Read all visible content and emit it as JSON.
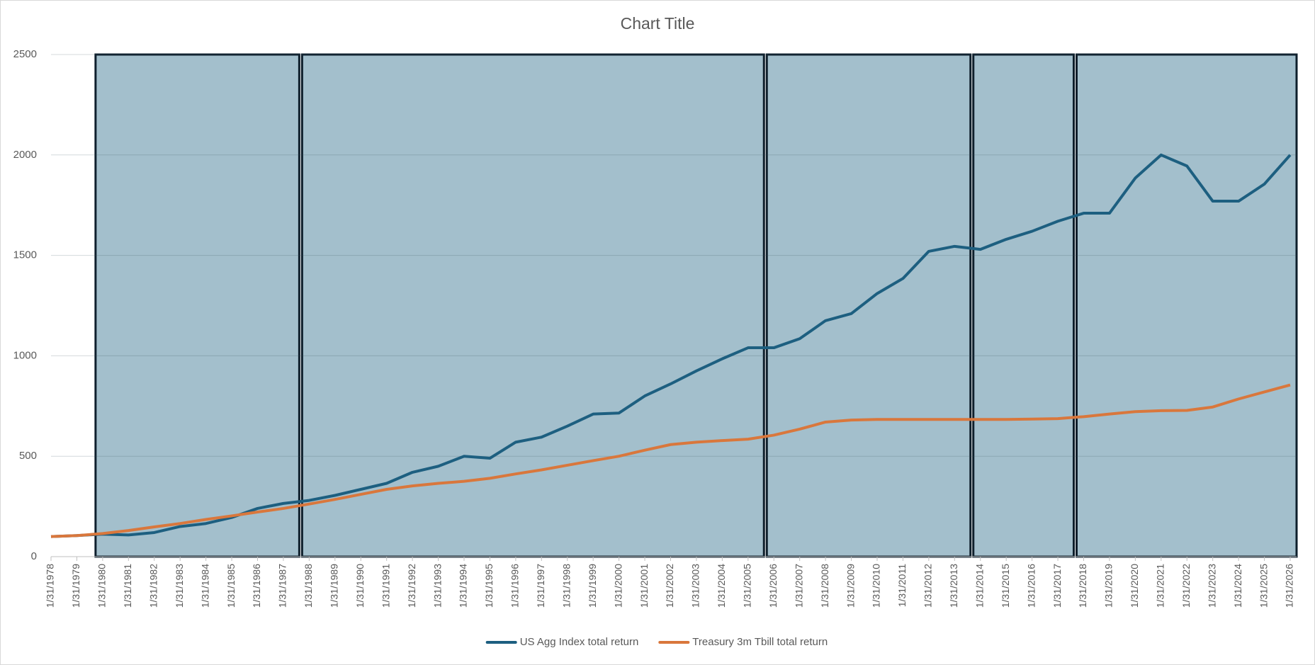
{
  "chart_data": {
    "type": "line",
    "title": "Chart Title",
    "categories": [
      "1/31/1978",
      "1/31/1979",
      "1/31/1980",
      "1/31/1981",
      "1/31/1982",
      "1/31/1983",
      "1/31/1984",
      "1/31/1985",
      "1/31/1986",
      "1/31/1987",
      "1/31/1988",
      "1/31/1989",
      "1/31/1990",
      "1/31/1991",
      "1/31/1992",
      "1/31/1993",
      "1/31/1994",
      "1/31/1995",
      "1/31/1996",
      "1/31/1997",
      "1/31/1998",
      "1/31/1999",
      "1/31/2000",
      "1/31/2001",
      "1/31/2002",
      "1/31/2003",
      "1/31/2004",
      "1/31/2005",
      "1/31/2006",
      "1/31/2007",
      "1/31/2008",
      "1/31/2009",
      "1/31/2010",
      "1/31/2011",
      "1/31/2012",
      "1/31/2013",
      "1/31/2014",
      "1/31/2015",
      "1/31/2016",
      "1/31/2017",
      "1/31/2018",
      "1/31/2019",
      "1/31/2020",
      "1/31/2021",
      "1/31/2022",
      "1/31/2023",
      "1/31/2024",
      "1/31/2025",
      "1/31/2026"
    ],
    "series": [
      {
        "name": "US Agg Index total return",
        "color": "#1d5f80",
        "values": [
          100,
          105,
          112,
          108,
          120,
          150,
          165,
          195,
          240,
          265,
          280,
          305,
          335,
          365,
          420,
          450,
          500,
          490,
          570,
          595,
          650,
          710,
          715,
          800,
          860,
          925,
          985,
          1040,
          1040,
          1085,
          1175,
          1210,
          1310,
          1385,
          1520,
          1545,
          1530,
          1580,
          1620,
          1670,
          1710,
          1710,
          1885,
          2000,
          1945,
          1770,
          1770,
          1855,
          2000
        ]
      },
      {
        "name": "Treasury 3m Tbill total return",
        "color": "#d9773c",
        "values": [
          100,
          105,
          115,
          130,
          148,
          165,
          185,
          203,
          222,
          240,
          262,
          285,
          310,
          335,
          352,
          365,
          375,
          390,
          412,
          432,
          455,
          478,
          500,
          530,
          558,
          570,
          578,
          585,
          605,
          635,
          670,
          680,
          683,
          683,
          683,
          683,
          683,
          683,
          685,
          687,
          697,
          710,
          722,
          727,
          728,
          745,
          785,
          820,
          855
        ]
      }
    ],
    "regions": [
      {
        "start": "1/31/1980",
        "end": "1/31/1988"
      },
      {
        "start": "1/31/1988",
        "end": "1/31/2006"
      },
      {
        "start": "1/31/2006",
        "end": "1/31/2014"
      },
      {
        "start": "1/31/2014",
        "end": "1/31/2018"
      },
      {
        "start": "1/31/2018",
        "end": "1/31/2026"
      }
    ],
    "region_color": "#a3bfcc",
    "ylim": [
      0,
      2500
    ],
    "yticks": [
      0,
      500,
      1000,
      1500,
      2000,
      2500
    ],
    "grid": true,
    "legend": "bottom"
  }
}
